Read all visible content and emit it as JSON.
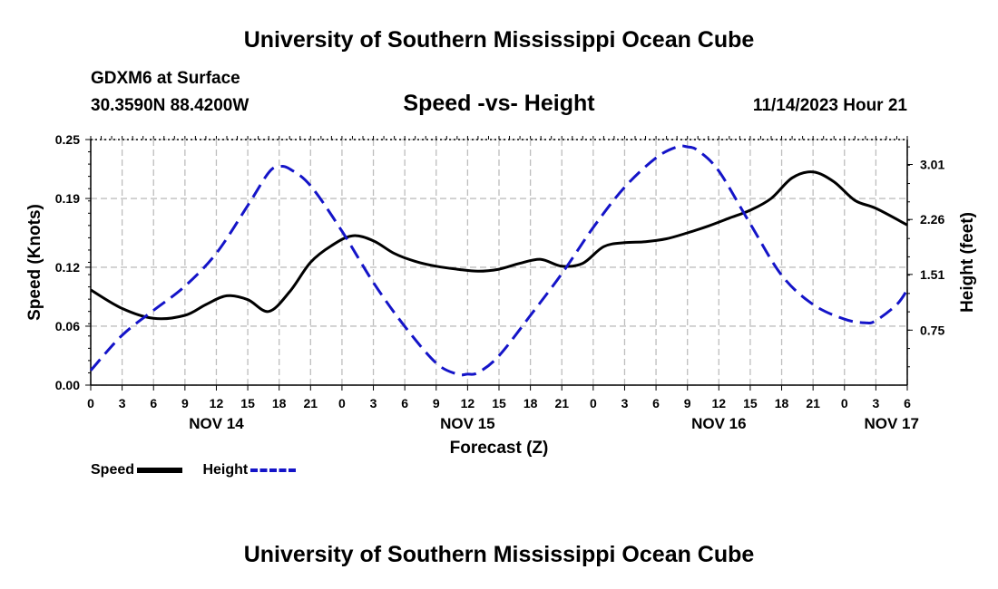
{
  "header": {
    "title": "University of Southern Mississippi Ocean Cube",
    "station": "GDXM6 at Surface",
    "coords": "30.3590N  88.4200W",
    "subtitle": "Speed -vs- Height",
    "datetime": "11/14/2023 Hour 21"
  },
  "footer": {
    "title": "University of Southern Mississippi Ocean Cube"
  },
  "legend": {
    "speed_label": "Speed",
    "height_label": "Height"
  },
  "colors": {
    "speed": "#000000",
    "height": "#1414c8",
    "grid": "#bdbdbd"
  },
  "chart_data": {
    "type": "line",
    "title": "Speed -vs- Height",
    "xlabel": "Forecast (Z)",
    "ylabel": "Speed (Knots)",
    "y2label": "Height (feet)",
    "grid": true,
    "x_range_hours": [
      0,
      78
    ],
    "x_tick_step_hours": 3,
    "x_tick_labels": [
      "0",
      "3",
      "6",
      "9",
      "12",
      "15",
      "18",
      "21",
      "0",
      "3",
      "6",
      "9",
      "12",
      "15",
      "18",
      "21",
      "0",
      "3",
      "6",
      "9",
      "12",
      "15",
      "18",
      "21",
      "0",
      "3",
      "6"
    ],
    "day_labels": [
      {
        "label": "NOV 14",
        "hour": 12
      },
      {
        "label": "NOV 15",
        "hour": 36
      },
      {
        "label": "NOV 16",
        "hour": 60
      },
      {
        "label": "NOV 17",
        "hour": 76.5
      }
    ],
    "ylim": [
      0,
      0.25
    ],
    "y_ticks": [
      0,
      0.06,
      0.12,
      0.19,
      0.25
    ],
    "y_tick_labels": [
      "0.00",
      "0.06",
      "0.12",
      "0.19",
      "0.25"
    ],
    "y2lim": [
      0,
      3.35
    ],
    "y2_ticks": [
      0.75,
      1.51,
      2.26,
      3.01
    ],
    "y2_tick_labels": [
      "0.75",
      "1.51",
      "2.26",
      "3.01"
    ],
    "series": [
      {
        "name": "Speed",
        "axis": "left",
        "style": "solid",
        "x": [
          0,
          3,
          6,
          9,
          11,
          13,
          15,
          17,
          19,
          21,
          23,
          25,
          27,
          29,
          31,
          33,
          35,
          37,
          39,
          41,
          43,
          45,
          47,
          49,
          51,
          53,
          55,
          57,
          59,
          61,
          63,
          65,
          67,
          69,
          71,
          73,
          75,
          78
        ],
        "values": [
          0.097,
          0.078,
          0.068,
          0.071,
          0.082,
          0.091,
          0.087,
          0.075,
          0.095,
          0.125,
          0.142,
          0.152,
          0.147,
          0.134,
          0.126,
          0.121,
          0.118,
          0.116,
          0.118,
          0.124,
          0.128,
          0.121,
          0.124,
          0.141,
          0.145,
          0.146,
          0.149,
          0.155,
          0.162,
          0.17,
          0.178,
          0.19,
          0.211,
          0.217,
          0.207,
          0.188,
          0.18,
          0.163
        ]
      },
      {
        "name": "Height",
        "axis": "right",
        "style": "dashed",
        "x": [
          0,
          3,
          6,
          9,
          12,
          15,
          17,
          18,
          19,
          21,
          24,
          27,
          30,
          33,
          35,
          36,
          37,
          39,
          42,
          45,
          48,
          51,
          54,
          56,
          57,
          58,
          60,
          63,
          66,
          69,
          72,
          74,
          75,
          77,
          78
        ],
        "values": [
          0.2,
          0.68,
          1.02,
          1.35,
          1.8,
          2.45,
          2.9,
          2.98,
          2.95,
          2.72,
          2.1,
          1.4,
          0.8,
          0.3,
          0.15,
          0.15,
          0.17,
          0.4,
          0.95,
          1.52,
          2.15,
          2.7,
          3.1,
          3.25,
          3.25,
          3.2,
          2.92,
          2.2,
          1.5,
          1.1,
          0.9,
          0.85,
          0.88,
          1.1,
          1.3
        ]
      }
    ]
  }
}
